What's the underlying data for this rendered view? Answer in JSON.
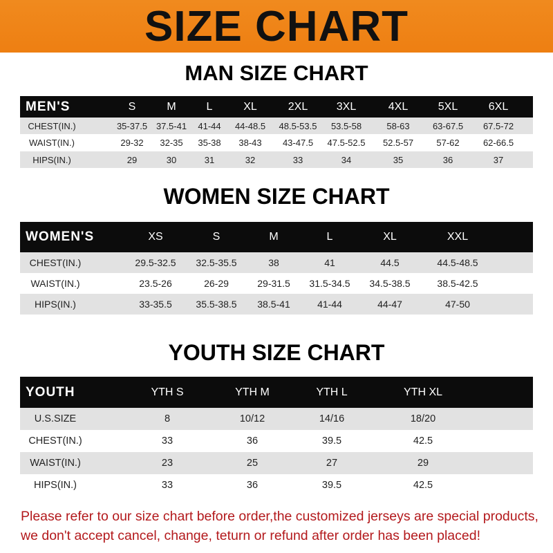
{
  "banner_title": "SIZE CHART",
  "colors": {
    "banner": "#ef8418",
    "header_row": "#0c0c0c",
    "notice_text": "#b3191c"
  },
  "men": {
    "title": "MAN SIZE CHART",
    "columns": [
      "MEN'S",
      "S",
      "M",
      "L",
      "XL",
      "2XL",
      "3XL",
      "4XL",
      "5XL",
      "6XL"
    ],
    "rows": [
      [
        "CHEST(IN.)",
        "35-37.5",
        "37.5-41",
        "41-44",
        "44-48.5",
        "48.5-53.5",
        "53.5-58",
        "58-63",
        "63-67.5",
        "67.5-72"
      ],
      [
        "WAIST(IN.)",
        "29-32",
        "32-35",
        "35-38",
        "38-43",
        "43-47.5",
        "47.5-52.5",
        "52.5-57",
        "57-62",
        "62-66.5"
      ],
      [
        "HIPS(IN.)",
        "29",
        "30",
        "31",
        "32",
        "33",
        "34",
        "35",
        "36",
        "37"
      ]
    ]
  },
  "women": {
    "title": "WOMEN SIZE CHART",
    "columns": [
      "WOMEN'S",
      "XS",
      "S",
      "M",
      "L",
      "XL",
      "XXL"
    ],
    "rows": [
      [
        "CHEST(IN.)",
        "29.5-32.5",
        "32.5-35.5",
        "38",
        "41",
        "44.5",
        "44.5-48.5"
      ],
      [
        "WAIST(IN.)",
        "23.5-26",
        "26-29",
        "29-31.5",
        "31.5-34.5",
        "34.5-38.5",
        "38.5-42.5"
      ],
      [
        "HIPS(IN.)",
        "33-35.5",
        "35.5-38.5",
        "38.5-41",
        "41-44",
        "44-47",
        "47-50"
      ]
    ]
  },
  "youth": {
    "title": "YOUTH SIZE CHART",
    "columns": [
      "YOUTH",
      "YTH S",
      "YTH M",
      "YTH L",
      "YTH XL"
    ],
    "rows": [
      [
        "U.S.SIZE",
        "8",
        "10/12",
        "14/16",
        "18/20"
      ],
      [
        "CHEST(IN.)",
        "33",
        "36",
        "39.5",
        "42.5"
      ],
      [
        "WAIST(IN.)",
        "23",
        "25",
        "27",
        "29"
      ],
      [
        "HIPS(IN.)",
        "33",
        "36",
        "39.5",
        "42.5"
      ]
    ]
  },
  "notice": "Please refer to our size chart before order,the customized jerseys are special products, we don't accept cancel, change, teturn or refund after order has been placed!"
}
